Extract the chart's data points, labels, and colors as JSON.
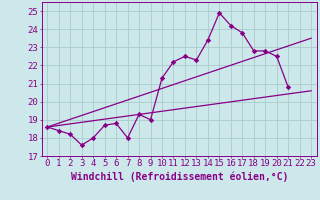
{
  "xlabel": "Windchill (Refroidissement éolien,°C)",
  "background_color": "#cce8ea",
  "grid_color": "#aacccc",
  "line_color": "#880088",
  "xlim": [
    -0.5,
    23.5
  ],
  "ylim": [
    17,
    25.5
  ],
  "yticks": [
    17,
    18,
    19,
    20,
    21,
    22,
    23,
    24,
    25
  ],
  "xticks": [
    0,
    1,
    2,
    3,
    4,
    5,
    6,
    7,
    8,
    9,
    10,
    11,
    12,
    13,
    14,
    15,
    16,
    17,
    18,
    19,
    20,
    21,
    22,
    23
  ],
  "line1_x": [
    0,
    1,
    2,
    3,
    4,
    5,
    6,
    7,
    8,
    9,
    10,
    11,
    12,
    13,
    14,
    15,
    16,
    17,
    18,
    19,
    20,
    21
  ],
  "line1_y": [
    18.6,
    18.4,
    18.2,
    17.6,
    18.0,
    18.7,
    18.8,
    18.0,
    19.3,
    19.0,
    21.3,
    22.2,
    22.5,
    22.3,
    23.4,
    24.9,
    24.2,
    23.8,
    22.8,
    22.8,
    22.5,
    20.8
  ],
  "line2_x": [
    0,
    23
  ],
  "line2_y": [
    18.6,
    20.6
  ],
  "line3_x": [
    0,
    23
  ],
  "line3_y": [
    18.6,
    23.5
  ],
  "xlabel_fontsize": 7,
  "tick_fontsize": 6.5
}
